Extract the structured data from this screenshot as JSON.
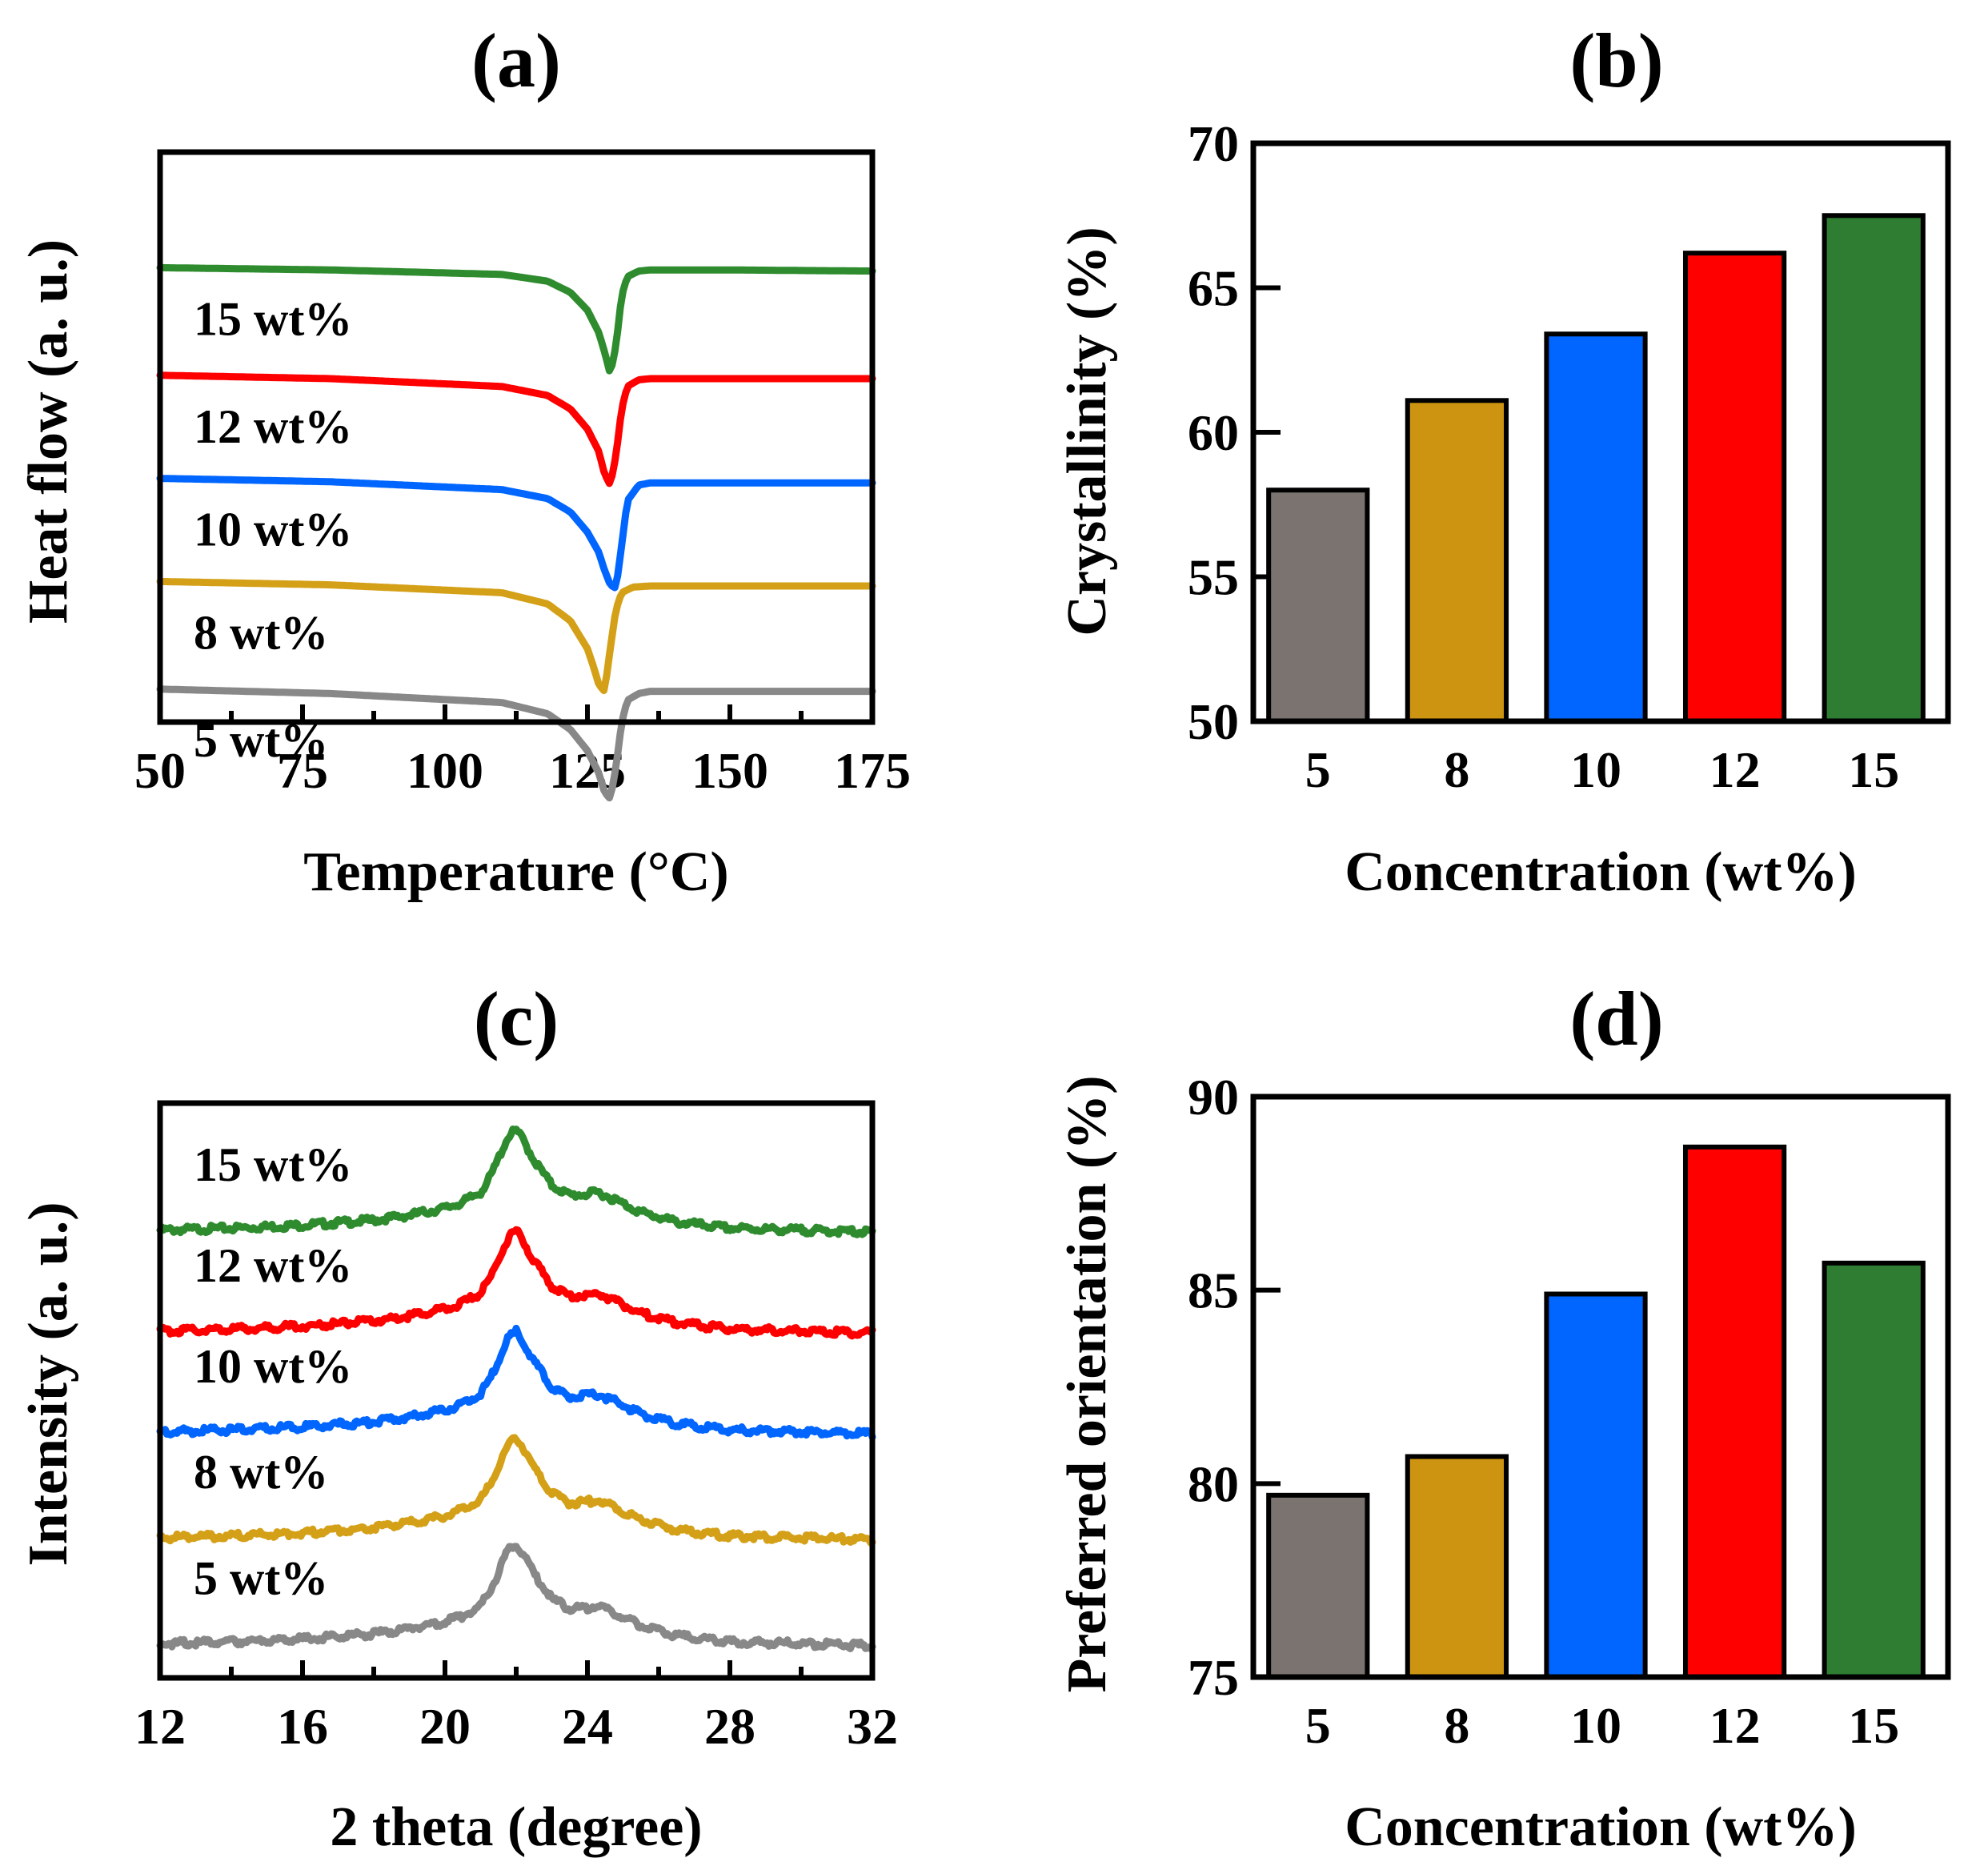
{
  "chart_data": [
    {
      "panel": "(a)",
      "type": "line",
      "xlabel": "Temperature (°C)",
      "ylabel": "Heat flow (a. u.)",
      "xlim": [
        50,
        175
      ],
      "xticks": [
        "50",
        "75",
        "100",
        "125",
        "150",
        "175"
      ],
      "series": [
        {
          "name": "15 wt%",
          "label": "15 wt%",
          "color": "#2e8b2e",
          "offset": 4.8,
          "x": [
            50,
            80,
            110,
            118,
            122,
            125,
            127,
            128,
            129,
            130,
            131,
            132,
            134,
            136,
            140,
            150,
            175
          ],
          "y": [
            0,
            -0.02,
            -0.06,
            -0.12,
            -0.22,
            -0.38,
            -0.58,
            -0.75,
            -0.95,
            -0.7,
            -0.25,
            -0.08,
            -0.03,
            -0.02,
            -0.02,
            -0.02,
            -0.03
          ]
        },
        {
          "name": "12 wt%",
          "label": "12 wt%",
          "color": "#ff0000",
          "offset": 3.6,
          "x": [
            50,
            80,
            110,
            118,
            122,
            125,
            127,
            128,
            129,
            130,
            131,
            132,
            134,
            136,
            140,
            150,
            175
          ],
          "y": [
            0,
            -0.03,
            -0.1,
            -0.18,
            -0.3,
            -0.48,
            -0.68,
            -0.88,
            -0.98,
            -0.72,
            -0.3,
            -0.1,
            -0.04,
            -0.03,
            -0.03,
            -0.03,
            -0.03
          ]
        },
        {
          "name": "10 wt%",
          "label": "10 wt%",
          "color": "#0066ff",
          "offset": 2.45,
          "x": [
            50,
            80,
            110,
            118,
            122,
            125,
            127,
            128,
            129,
            130,
            131,
            132,
            134,
            136,
            140,
            150,
            175
          ],
          "y": [
            0,
            -0.03,
            -0.1,
            -0.18,
            -0.3,
            -0.48,
            -0.66,
            -0.82,
            -0.95,
            -0.98,
            -0.6,
            -0.2,
            -0.06,
            -0.04,
            -0.04,
            -0.04,
            -0.04
          ]
        },
        {
          "name": "8 wt%",
          "label": "8 wt%",
          "color": "#d4a017",
          "offset": 1.3,
          "x": [
            50,
            80,
            110,
            118,
            122,
            125,
            126,
            127,
            128,
            129,
            130,
            131,
            133,
            136,
            140,
            150,
            175
          ],
          "y": [
            0,
            -0.03,
            -0.1,
            -0.2,
            -0.35,
            -0.6,
            -0.75,
            -0.92,
            -0.98,
            -0.6,
            -0.25,
            -0.1,
            -0.05,
            -0.04,
            -0.04,
            -0.04,
            -0.04
          ]
        },
        {
          "name": "5 wt%",
          "label": "5 wt%",
          "color": "#888888",
          "offset": 0.1,
          "x": [
            50,
            80,
            110,
            118,
            122,
            125,
            127,
            128,
            129,
            130,
            131,
            132,
            134,
            136,
            140,
            150,
            175
          ],
          "y": [
            0,
            -0.04,
            -0.12,
            -0.22,
            -0.36,
            -0.55,
            -0.75,
            -0.92,
            -0.98,
            -0.7,
            -0.3,
            -0.1,
            -0.04,
            -0.02,
            -0.02,
            -0.02,
            -0.02
          ]
        }
      ]
    },
    {
      "panel": "(b)",
      "type": "bar",
      "xlabel": "Concentration (wt%)",
      "ylabel": "Crystallinity (%)",
      "ylim": [
        50,
        70
      ],
      "yticks": [
        "50",
        "55",
        "60",
        "65",
        "70"
      ],
      "categories": [
        "5",
        "8",
        "10",
        "12",
        "15"
      ],
      "values": [
        58.0,
        61.1,
        63.4,
        66.2,
        67.5
      ],
      "colors": [
        "#7a7370",
        "#cc9410",
        "#0066ff",
        "#ff0000",
        "#2e7d32"
      ]
    },
    {
      "panel": "(c)",
      "type": "line",
      "xlabel": "2 theta (degree)",
      "ylabel": "Intensity (a. u.)",
      "xlim": [
        12,
        32
      ],
      "xticks": [
        "12",
        "16",
        "20",
        "24",
        "28",
        "32"
      ],
      "series": [
        {
          "name": "15 wt%",
          "label": "15 wt%",
          "color": "#2e8b2e",
          "offset": 4.2
        },
        {
          "name": "12 wt%",
          "label": "12 wt%",
          "color": "#ff0000",
          "offset": 3.2
        },
        {
          "name": "10 wt%",
          "label": "10 wt%",
          "color": "#0066ff",
          "offset": 2.2
        },
        {
          "name": "8 wt%",
          "label": "8 wt%",
          "color": "#d4a017",
          "offset": 1.15
        },
        {
          "name": "5 wt%",
          "label": "5 wt%",
          "color": "#888888",
          "offset": 0.1
        }
      ],
      "profile": {
        "x": [
          12,
          14,
          16,
          18,
          19,
          20,
          20.5,
          21,
          21.3,
          21.6,
          21.8,
          22,
          22.2,
          22.5,
          23,
          23.5,
          24,
          24.3,
          24.8,
          25.5,
          26.5,
          28,
          30,
          32
        ],
        "y": [
          0,
          0.02,
          0.05,
          0.1,
          0.15,
          0.22,
          0.28,
          0.38,
          0.55,
          0.8,
          0.95,
          1.0,
          0.9,
          0.7,
          0.45,
          0.35,
          0.36,
          0.38,
          0.3,
          0.18,
          0.08,
          0.02,
          0.0,
          -0.02
        ]
      }
    },
    {
      "panel": "(d)",
      "type": "bar",
      "xlabel": "Concentration (wt%)",
      "ylabel": "Preferred orientation (%)",
      "ylim": [
        75,
        90
      ],
      "yticks": [
        "75",
        "80",
        "85",
        "90"
      ],
      "categories": [
        "5",
        "8",
        "10",
        "12",
        "15"
      ],
      "values": [
        79.7,
        80.7,
        84.9,
        88.7,
        85.7
      ],
      "colors": [
        "#7a7370",
        "#cc9410",
        "#0066ff",
        "#ff0000",
        "#2e7d32"
      ]
    }
  ]
}
